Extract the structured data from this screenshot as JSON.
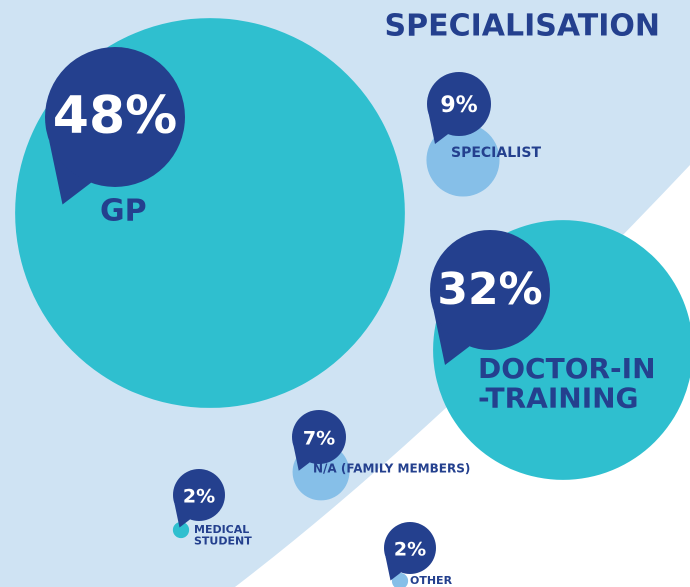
{
  "chart_data": {
    "type": "bubble",
    "title": "SPECIALISATION",
    "categories": [
      "GP",
      "SPECIALIST",
      "DOCTOR-IN\n-TRAINING",
      "N/A (FAMILY MEMBERS)",
      "MEDICAL\nSTUDENT",
      "OTHER"
    ],
    "values": [
      48,
      9,
      32,
      7,
      2,
      2
    ],
    "value_labels": [
      "48%",
      "9%",
      "32%",
      "7%",
      "2%",
      "2%"
    ],
    "colors": [
      "#2fbfcf",
      "#86bfe8",
      "#2fbfcf",
      "#86bfe8",
      "#2fbfcf",
      "#86bfe8"
    ]
  }
}
